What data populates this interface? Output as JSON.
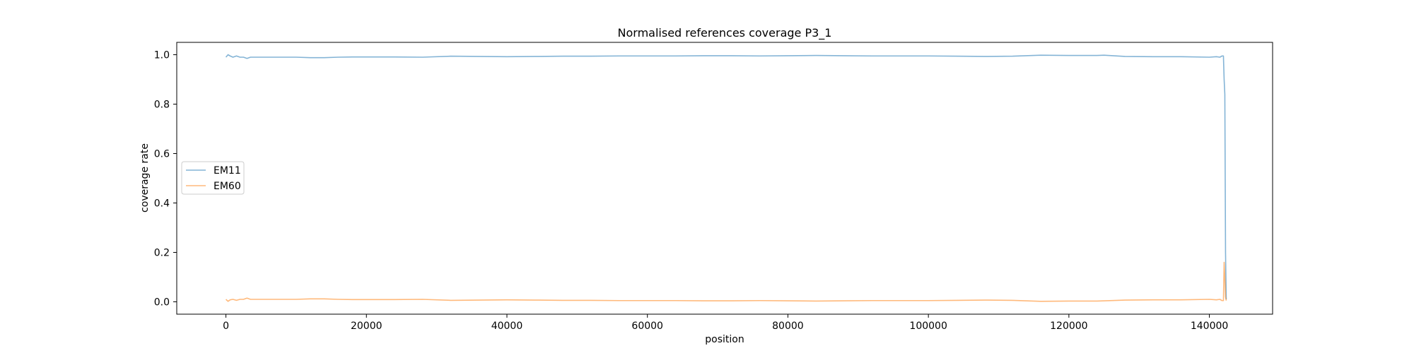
{
  "chart_data": {
    "type": "line",
    "title": "Normalised references coverage P3_1",
    "xlabel": "position",
    "ylabel": "coverage rate",
    "xlim": [
      -7000,
      149000
    ],
    "ylim": [
      -0.05,
      1.05
    ],
    "x_ticks": [
      0,
      20000,
      40000,
      60000,
      80000,
      100000,
      120000,
      140000
    ],
    "x_tick_labels": [
      "0",
      "20000",
      "40000",
      "60000",
      "80000",
      "100000",
      "120000",
      "140000"
    ],
    "y_ticks": [
      0.0,
      0.2,
      0.4,
      0.6,
      0.8,
      1.0
    ],
    "y_tick_labels": [
      "0.0",
      "0.2",
      "0.4",
      "0.6",
      "0.8",
      "1.0"
    ],
    "grid": false,
    "legend_position": "center-left",
    "series": [
      {
        "name": "EM11",
        "color": "#1f77b4",
        "x": [
          0,
          300,
          600,
          1000,
          1500,
          2000,
          2500,
          3000,
          3500,
          4000,
          6000,
          8000,
          10000,
          12000,
          14000,
          16000,
          18000,
          20000,
          24000,
          28000,
          32000,
          36000,
          40000,
          44000,
          48000,
          52000,
          56000,
          60000,
          64000,
          68000,
          72000,
          76000,
          80000,
          84000,
          88000,
          92000,
          96000,
          100000,
          104000,
          108000,
          112000,
          116000,
          120000,
          124000,
          125000,
          128000,
          132000,
          136000,
          140000,
          141000,
          141500,
          141800,
          142000,
          142100,
          142200,
          142300,
          142400
        ],
        "y": [
          0.99,
          1.0,
          0.995,
          0.99,
          0.995,
          0.99,
          0.99,
          0.985,
          0.99,
          0.99,
          0.99,
          0.99,
          0.99,
          0.988,
          0.988,
          0.99,
          0.991,
          0.991,
          0.991,
          0.99,
          0.994,
          0.993,
          0.992,
          0.993,
          0.994,
          0.994,
          0.995,
          0.995,
          0.995,
          0.996,
          0.996,
          0.995,
          0.996,
          0.997,
          0.996,
          0.995,
          0.995,
          0.995,
          0.994,
          0.993,
          0.994,
          0.998,
          0.997,
          0.997,
          0.998,
          0.993,
          0.992,
          0.992,
          0.99,
          0.992,
          0.99,
          0.995,
          0.995,
          0.9,
          0.84,
          0.2,
          0.01
        ]
      },
      {
        "name": "EM60",
        "color": "#ff7f0e",
        "x": [
          0,
          300,
          600,
          1000,
          1500,
          2000,
          2500,
          3000,
          3500,
          4000,
          6000,
          8000,
          10000,
          12000,
          14000,
          16000,
          18000,
          20000,
          24000,
          28000,
          32000,
          36000,
          40000,
          44000,
          48000,
          52000,
          56000,
          60000,
          64000,
          68000,
          72000,
          76000,
          80000,
          84000,
          88000,
          92000,
          96000,
          100000,
          104000,
          108000,
          112000,
          116000,
          120000,
          124000,
          128000,
          132000,
          136000,
          140000,
          141000,
          141500,
          141800,
          142000,
          142100,
          142200,
          142300,
          142400
        ],
        "y": [
          0.01,
          0.002,
          0.008,
          0.01,
          0.006,
          0.01,
          0.01,
          0.015,
          0.01,
          0.01,
          0.01,
          0.01,
          0.01,
          0.012,
          0.012,
          0.01,
          0.009,
          0.009,
          0.009,
          0.01,
          0.006,
          0.007,
          0.008,
          0.007,
          0.006,
          0.006,
          0.005,
          0.005,
          0.005,
          0.004,
          0.004,
          0.005,
          0.004,
          0.003,
          0.004,
          0.005,
          0.005,
          0.005,
          0.006,
          0.007,
          0.006,
          0.002,
          0.003,
          0.003,
          0.007,
          0.008,
          0.008,
          0.01,
          0.008,
          0.01,
          0.005,
          0.005,
          0.16,
          0.1,
          0.02,
          0.005
        ]
      }
    ]
  }
}
